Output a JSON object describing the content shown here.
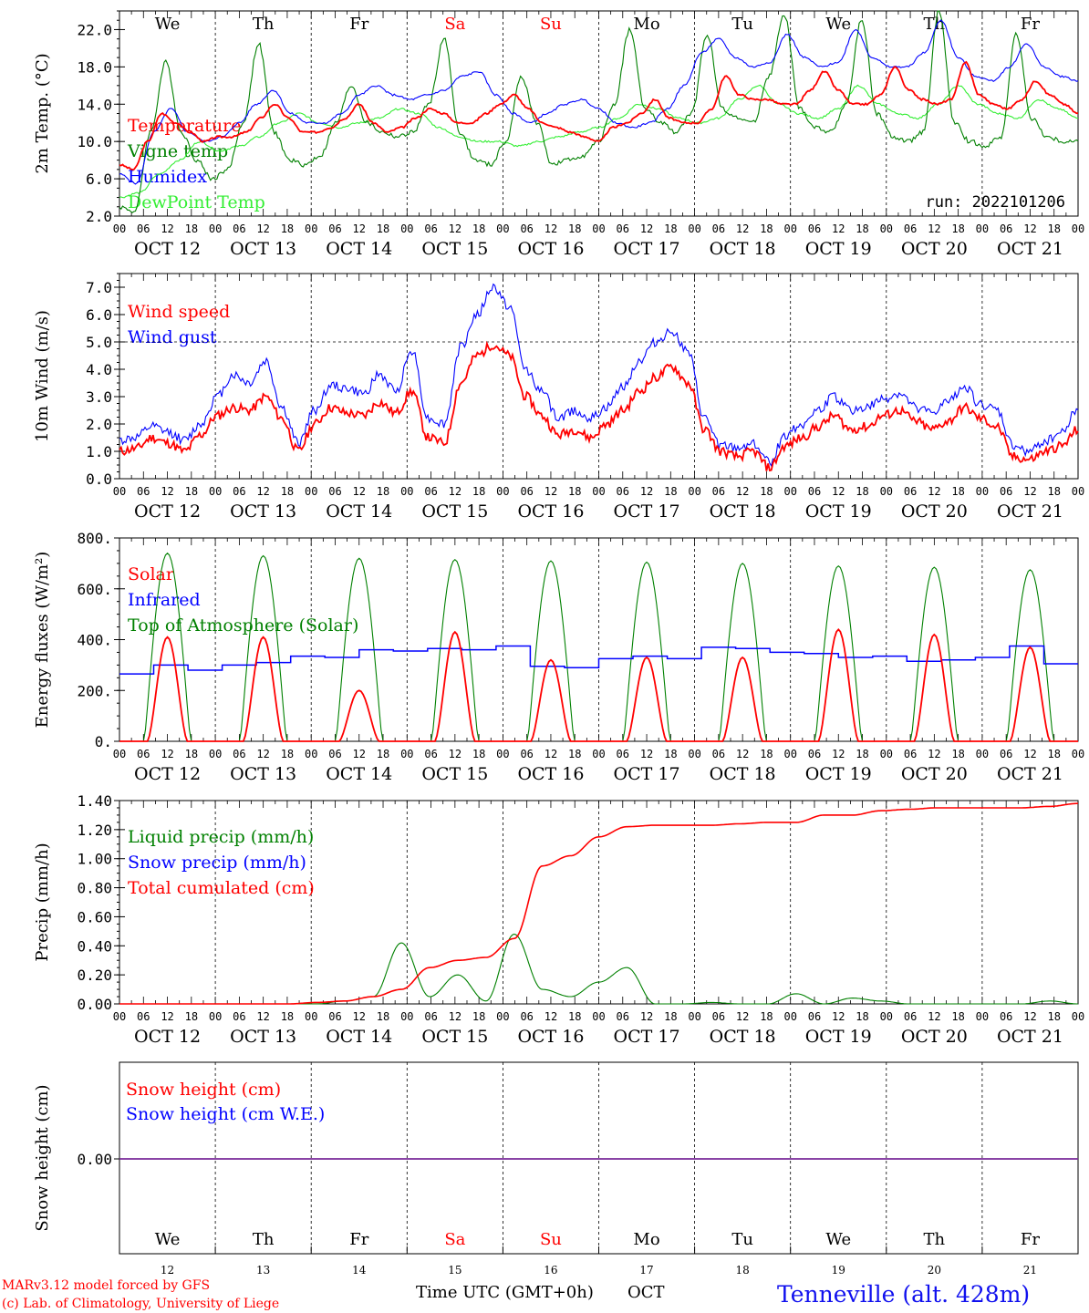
{
  "chart_data": [
    {
      "type": "line",
      "ylabel": "2m Temp. (°C)",
      "ylim": [
        2.0,
        24.0
      ],
      "yticks": [
        "2.0",
        "6.0",
        "10.0",
        "14.0",
        "18.0",
        "22.0"
      ],
      "run_label": "run: 2022101206",
      "legend": [
        {
          "name": "Temperature",
          "color": "#ff0000"
        },
        {
          "name": "Vigne temp",
          "color": "#008000"
        },
        {
          "name": "Humidex",
          "color": "#0000ff"
        },
        {
          "name": "DewPoint Temp",
          "color": "#33ee33"
        }
      ],
      "series": [
        {
          "name": "Temperature",
          "color": "#ff0000",
          "values": [
            7.5,
            7.0,
            10.0,
            13.0,
            12.0,
            11.0,
            10.0,
            10.5,
            10.5,
            11.0,
            12.5,
            14.0,
            12.5,
            11.0,
            11.0,
            11.5,
            12.5,
            14.0,
            12.0,
            11.0,
            11.5,
            12.5,
            13.5,
            13.0,
            12.0,
            12.0,
            13.0,
            14.0,
            15.0,
            13.5,
            12.0,
            11.5,
            11.0,
            10.5,
            10.0,
            11.5,
            12.0,
            13.0,
            14.5,
            12.5,
            12.0,
            12.0,
            13.5,
            17.0,
            15.0,
            14.5,
            14.5,
            14.0,
            14.0,
            15.5,
            17.5,
            15.5,
            14.0,
            14.0,
            15.0,
            18.0,
            15.5,
            14.5,
            14.0,
            14.5,
            18.5,
            15.0,
            14.0,
            13.5,
            14.5,
            16.5,
            15.0,
            14.0,
            13.0
          ]
        },
        {
          "name": "Vigne temp",
          "color": "#008000",
          "values": [
            3.0,
            2.5,
            11.0,
            18.5,
            11.0,
            8.0,
            6.0,
            7.0,
            12.0,
            20.5,
            11.0,
            8.0,
            7.5,
            8.5,
            12.0,
            16.0,
            12.0,
            11.0,
            10.5,
            11.0,
            14.0,
            21.0,
            11.0,
            8.0,
            7.5,
            10.0,
            17.0,
            12.0,
            7.5,
            8.0,
            8.5,
            10.0,
            14.0,
            22.0,
            13.5,
            12.0,
            11.0,
            13.0,
            21.5,
            13.5,
            12.5,
            12.0,
            17.0,
            23.5,
            13.5,
            11.5,
            11.0,
            14.0,
            23.0,
            13.0,
            10.5,
            10.0,
            11.0,
            24.0,
            12.0,
            10.0,
            9.5,
            10.5,
            21.5,
            12.5,
            10.5,
            10.0,
            10.0
          ]
        },
        {
          "name": "Humidex",
          "color": "#0000ff",
          "values": [
            6.5,
            5.5,
            11.0,
            13.5,
            11.0,
            10.0,
            10.5,
            12.0,
            14.0,
            15.5,
            13.0,
            12.0,
            12.0,
            13.0,
            15.0,
            16.0,
            15.0,
            14.5,
            15.0,
            15.5,
            17.0,
            17.5,
            15.0,
            13.0,
            12.0,
            13.0,
            14.0,
            14.5,
            13.5,
            12.0,
            11.5,
            12.0,
            13.5,
            16.0,
            19.5,
            21.0,
            19.0,
            18.0,
            18.5,
            21.5,
            19.0,
            18.0,
            18.5,
            22.0,
            19.0,
            18.0,
            18.0,
            19.5,
            23.0,
            19.0,
            17.0,
            16.5,
            18.0,
            20.5,
            18.0,
            17.0,
            16.5
          ]
        },
        {
          "name": "DewPoint Temp",
          "color": "#33ee33",
          "values": [
            4.0,
            4.5,
            6.5,
            8.0,
            10.0,
            9.0,
            9.5,
            10.5,
            12.0,
            13.0,
            12.0,
            11.5,
            12.0,
            12.5,
            13.5,
            13.0,
            11.5,
            10.5,
            10.0,
            10.0,
            9.5,
            10.0,
            10.5,
            11.0,
            11.5,
            12.5,
            14.0,
            13.5,
            12.5,
            12.0,
            12.5,
            14.5,
            16.0,
            14.0,
            13.0,
            12.5,
            13.5,
            16.0,
            14.0,
            13.0,
            12.5,
            14.0,
            16.0,
            14.0,
            13.0,
            12.5,
            14.5,
            13.5,
            12.5
          ]
        }
      ]
    },
    {
      "type": "line",
      "ylabel": "10m Wind (m/s)",
      "ylim": [
        0.0,
        7.5
      ],
      "yticks": [
        "0.0",
        "1.0",
        "2.0",
        "3.0",
        "4.0",
        "5.0",
        "6.0",
        "7.0"
      ],
      "reference_line": 5.0,
      "legend": [
        {
          "name": "Wind speed",
          "color": "#ff0000"
        },
        {
          "name": "Wind gust",
          "color": "#0000ff"
        }
      ],
      "series": [
        {
          "name": "Wind speed",
          "color": "#ff0000",
          "values": [
            1.0,
            1.1,
            1.5,
            1.3,
            1.0,
            1.6,
            2.3,
            2.6,
            2.5,
            3.0,
            2.2,
            1.0,
            2.0,
            2.6,
            2.4,
            2.3,
            2.8,
            2.4,
            3.2,
            1.5,
            1.3,
            3.5,
            4.5,
            4.9,
            4.5,
            3.0,
            2.3,
            1.6,
            1.8,
            1.5,
            2.0,
            2.5,
            3.2,
            3.7,
            4.1,
            3.5,
            1.8,
            1.0,
            0.8,
            1.0,
            0.4,
            1.2,
            1.5,
            1.9,
            2.3,
            1.8,
            1.9,
            2.3,
            2.5,
            2.1,
            1.8,
            2.1,
            2.6,
            2.2,
            1.9,
            0.8,
            0.7,
            1.0,
            1.2,
            1.8
          ]
        },
        {
          "name": "Wind gust",
          "color": "#0000ff",
          "values": [
            1.4,
            1.5,
            1.9,
            1.7,
            1.4,
            2.0,
            3.0,
            3.8,
            3.5,
            4.3,
            2.6,
            1.3,
            2.5,
            3.4,
            3.3,
            3.1,
            3.8,
            3.2,
            4.7,
            2.2,
            2.0,
            4.8,
            6.0,
            7.0,
            6.3,
            4.0,
            3.2,
            2.2,
            2.5,
            2.2,
            2.6,
            3.4,
            4.3,
            5.0,
            5.4,
            4.6,
            2.2,
            1.2,
            1.1,
            1.3,
            0.6,
            1.6,
            2.0,
            2.5,
            3.0,
            2.5,
            2.6,
            2.9,
            3.1,
            2.6,
            2.4,
            2.8,
            3.4,
            2.7,
            2.5,
            1.2,
            1.0,
            1.4,
            1.7,
            2.6
          ]
        }
      ]
    },
    {
      "type": "line",
      "ylabel": "Energy fluxes (W/m²)",
      "ylim": [
        0,
        800
      ],
      "yticks": [
        "0.",
        "200.",
        "400.",
        "600.",
        "800."
      ],
      "legend": [
        {
          "name": "Solar",
          "color": "#ff0000"
        },
        {
          "name": "Infrared",
          "color": "#0000ff"
        },
        {
          "name": "Top of Atmosphere (Solar)",
          "color": "#008000"
        }
      ],
      "toa_peaks": [
        740,
        730,
        720,
        715,
        710,
        705,
        700,
        690,
        685,
        675
      ],
      "solar_peaks": [
        410,
        410,
        200,
        430,
        320,
        330,
        330,
        440,
        420,
        370
      ],
      "infrared": [
        265,
        300,
        280,
        300,
        310,
        335,
        330,
        360,
        355,
        365,
        360,
        375,
        295,
        290,
        325,
        335,
        325,
        370,
        365,
        350,
        345,
        330,
        335,
        315,
        320,
        330,
        375,
        305
      ]
    },
    {
      "type": "line",
      "ylabel": "Precip (mm/h)",
      "ylim": [
        0.0,
        1.4
      ],
      "yticks": [
        "0.00",
        "0.20",
        "0.40",
        "0.60",
        "0.80",
        "1.00",
        "1.20",
        "1.40"
      ],
      "legend": [
        {
          "name": "Liquid precip (mm/h)",
          "color": "#008000"
        },
        {
          "name": "Snow precip (mm/h)",
          "color": "#0000ff"
        },
        {
          "name": "Total cumulated (cm)",
          "color": "#ff0000"
        }
      ],
      "series": [
        {
          "name": "Total cumulated (cm)",
          "color": "#ff0000",
          "values": [
            0,
            0,
            0,
            0,
            0,
            0,
            0,
            0.01,
            0.02,
            0.05,
            0.1,
            0.25,
            0.3,
            0.32,
            0.45,
            0.95,
            1.02,
            1.15,
            1.22,
            1.23,
            1.23,
            1.23,
            1.24,
            1.25,
            1.25,
            1.3,
            1.3,
            1.33,
            1.34,
            1.35,
            1.35,
            1.35,
            1.35,
            1.36,
            1.38
          ]
        },
        {
          "name": "Liquid precip (mm/h)",
          "color": "#008000",
          "values": [
            0,
            0,
            0,
            0,
            0,
            0,
            0,
            0,
            0.02,
            0.05,
            0.42,
            0.05,
            0.2,
            0.02,
            0.48,
            0.1,
            0.05,
            0.15,
            0.25,
            0,
            0,
            0.01,
            0,
            0,
            0.07,
            0,
            0.04,
            0.02,
            0,
            0,
            0,
            0,
            0,
            0.02,
            0
          ]
        }
      ]
    },
    {
      "type": "line",
      "ylabel": "Snow height (cm)",
      "yticks": [
        "0.00"
      ],
      "legend": [
        {
          "name": "Snow height (cm)",
          "color": "#ff0000"
        },
        {
          "name": "Snow height (cm W.E.)",
          "color": "#0000ff"
        }
      ],
      "series": [
        {
          "name": "Snow height (cm)",
          "color": "#ff0000",
          "values": [
            0,
            0
          ]
        },
        {
          "name": "Snow height (cm W.E.)",
          "color": "#0000ff",
          "values": [
            0,
            0
          ]
        }
      ]
    }
  ],
  "days": [
    {
      "abbr": "We",
      "color": "#000000",
      "date": "OCT 12",
      "num": "12"
    },
    {
      "abbr": "Th",
      "color": "#000000",
      "date": "OCT 13",
      "num": "13"
    },
    {
      "abbr": "Fr",
      "color": "#000000",
      "date": "OCT 14",
      "num": "14"
    },
    {
      "abbr": "Sa",
      "color": "#ff0000",
      "date": "OCT 15",
      "num": "15"
    },
    {
      "abbr": "Su",
      "color": "#ff0000",
      "date": "OCT 16",
      "num": "16"
    },
    {
      "abbr": "Mo",
      "color": "#000000",
      "date": "OCT 17",
      "num": "17"
    },
    {
      "abbr": "Tu",
      "color": "#000000",
      "date": "OCT 18",
      "num": "18"
    },
    {
      "abbr": "We",
      "color": "#000000",
      "date": "OCT 19",
      "num": "19"
    },
    {
      "abbr": "Th",
      "color": "#000000",
      "date": "OCT 20",
      "num": "20"
    },
    {
      "abbr": "Fr",
      "color": "#000000",
      "date": "OCT 21",
      "num": "21"
    }
  ],
  "hour_labels": [
    "00",
    "06",
    "12",
    "18"
  ],
  "footer": {
    "credit_line1": "MARv3.12 model forced by GFS",
    "credit_line2": "(c) Lab. of Climatology, University of Liege",
    "xlabel": "Time UTC (GMT+0h)",
    "month": "OCT",
    "station": "Tenneville (alt. 428m)"
  }
}
